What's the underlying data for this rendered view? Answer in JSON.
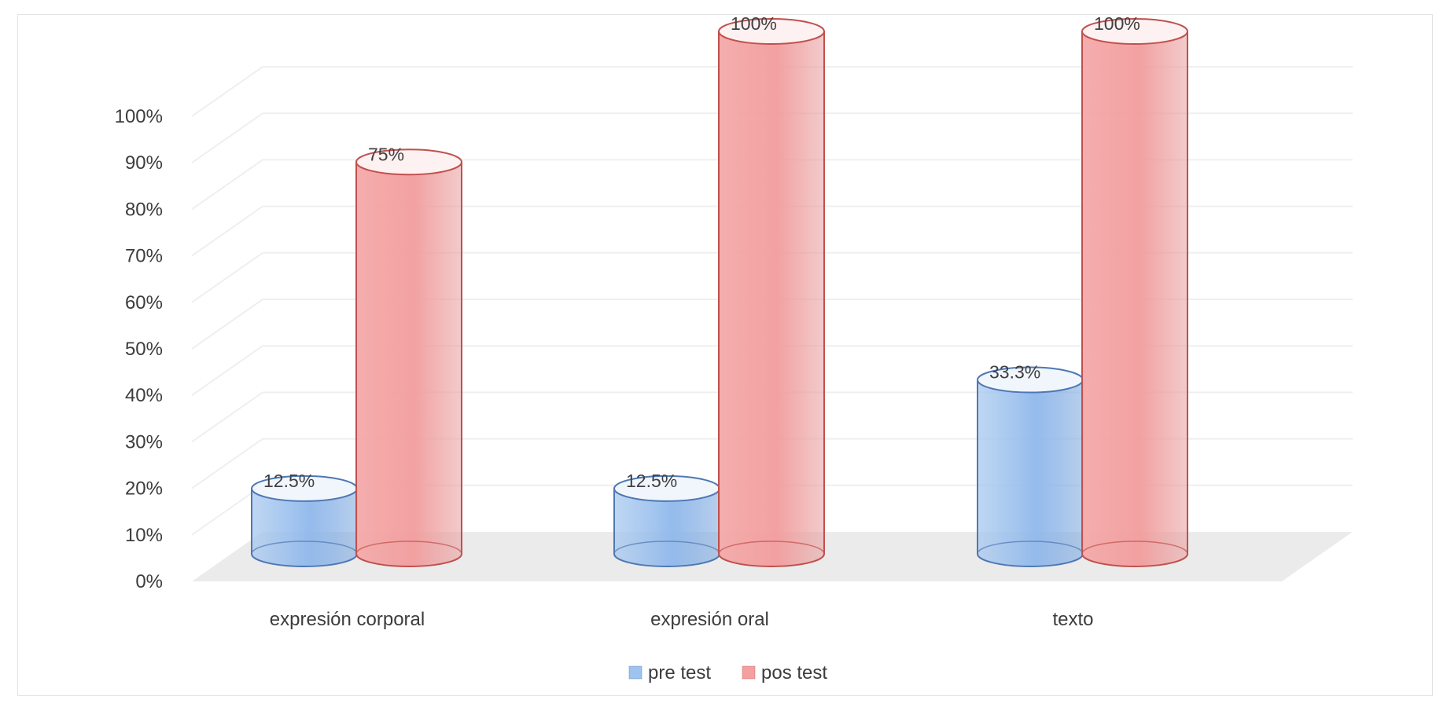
{
  "chart_data": {
    "type": "bar",
    "style": "3d-cylinder",
    "categories": [
      "expresión corporal",
      "expresión oral",
      "texto"
    ],
    "series": [
      {
        "name": "pre test",
        "values": [
          12.5,
          12.5,
          33.3
        ],
        "labels": [
          "12.5%",
          "12.5%",
          "33.3%"
        ],
        "color": "#9dc3ee",
        "stroke": "#4e78b4"
      },
      {
        "name": "pos test",
        "values": [
          75,
          100,
          100
        ],
        "labels": [
          "75%",
          "100%",
          "100%"
        ],
        "color": "#f2a0a0",
        "stroke": "#c0504d"
      }
    ],
    "yticks": [
      "0%",
      "10%",
      "20%",
      "30%",
      "40%",
      "50%",
      "60%",
      "70%",
      "80%",
      "90%",
      "100%"
    ],
    "ylim": [
      0,
      100
    ],
    "grid": true,
    "legend": "bottom"
  }
}
